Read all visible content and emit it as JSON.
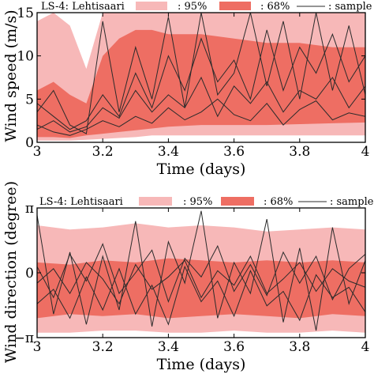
{
  "colors": {
    "band95": "#f7b8b8",
    "band68": "#ee6e63",
    "sample": "#2b2b2b",
    "axis": "#000000"
  },
  "legend": {
    "l95": ": 95%",
    "l68": ": 68%",
    "lsample": ": sample"
  },
  "chart_data": [
    {
      "type": "area",
      "title": "LS-4: Lehtisaari",
      "xlabel": "Time (days)",
      "ylabel": "Wind speed (m/s)",
      "xlim": [
        3,
        4
      ],
      "ylim": [
        0,
        15
      ],
      "xticks": [
        3,
        3.2,
        3.4,
        3.6,
        3.8,
        4
      ],
      "xtick_labels": [
        "3",
        "3.2",
        "3.4",
        "3.6",
        "3.8",
        "4"
      ],
      "yticks": [
        0,
        5,
        10,
        15
      ],
      "ytick_labels": [
        "0",
        "5",
        "10",
        "15"
      ],
      "x": [
        3.0,
        3.05,
        3.1,
        3.15,
        3.2,
        3.25,
        3.3,
        3.35,
        3.4,
        3.5,
        3.6,
        3.7,
        3.8,
        3.9,
        4.0
      ],
      "band95_lower": [
        0.2,
        0.2,
        0.2,
        0.3,
        0.4,
        0.5,
        0.6,
        0.8,
        0.8,
        0.8,
        0.8,
        0.8,
        0.8,
        0.8,
        0.8
      ],
      "band95_upper": [
        14.0,
        15.0,
        13.5,
        8.5,
        15.0,
        15.0,
        15.0,
        15.0,
        15.0,
        15.0,
        15.0,
        15.0,
        15.0,
        15.0,
        15.0
      ],
      "band68_lower": [
        0.6,
        0.6,
        0.5,
        0.8,
        1.0,
        1.2,
        1.4,
        1.6,
        1.8,
        2.0,
        2.0,
        2.0,
        2.1,
        2.2,
        2.3
      ],
      "band68_upper": [
        6.0,
        7.0,
        5.5,
        4.5,
        10.0,
        12.0,
        13.0,
        13.0,
        12.5,
        12.5,
        12.0,
        11.5,
        11.5,
        11.0,
        11.0
      ],
      "samples": [
        {
          "x": [
            3.0,
            3.05,
            3.1,
            3.15,
            3.2,
            3.25,
            3.3,
            3.35,
            3.4,
            3.45,
            3.5,
            3.55,
            3.6,
            3.65,
            3.7,
            3.75,
            3.8,
            3.85,
            3.9,
            3.95,
            4.0
          ],
          "y": [
            2.0,
            1.2,
            0.8,
            1.5,
            2.5,
            1.8,
            3.0,
            2.2,
            4.0,
            2.6,
            3.5,
            5.0,
            3.2,
            2.5,
            4.5,
            2.0,
            3.8,
            4.8,
            2.6,
            3.4,
            3.0
          ]
        },
        {
          "x": [
            3.0,
            3.05,
            3.1,
            3.15,
            3.2,
            3.25,
            3.3,
            3.35,
            3.4,
            3.45,
            3.5,
            3.55,
            3.6,
            3.65,
            3.7,
            3.75,
            3.8,
            3.85,
            3.9,
            3.95,
            4.0
          ],
          "y": [
            4.5,
            3.0,
            1.5,
            2.5,
            5.5,
            3.0,
            8.0,
            4.0,
            10.0,
            6.0,
            12.0,
            7.0,
            9.5,
            5.0,
            13.0,
            6.0,
            11.0,
            8.0,
            12.5,
            7.0,
            10.0
          ]
        },
        {
          "x": [
            3.0,
            3.05,
            3.1,
            3.15,
            3.2,
            3.25,
            3.3,
            3.35,
            3.4,
            3.45,
            3.5,
            3.55,
            3.6,
            3.65,
            3.7,
            3.75,
            3.8,
            3.85,
            3.9,
            3.95,
            4.0
          ],
          "y": [
            3.5,
            6.0,
            2.0,
            1.0,
            14.0,
            3.5,
            11.0,
            5.0,
            14.5,
            4.0,
            15.0,
            5.5,
            8.0,
            15.0,
            6.5,
            14.0,
            5.0,
            15.0,
            6.0,
            13.5,
            5.5
          ]
        },
        {
          "x": [
            3.0,
            3.05,
            3.1,
            3.15,
            3.2,
            3.25,
            3.3,
            3.35,
            3.4,
            3.45,
            3.5,
            3.55,
            3.6,
            3.65,
            3.7,
            3.75,
            3.8,
            3.85,
            3.9,
            3.95,
            4.0
          ],
          "y": [
            1.5,
            2.5,
            1.2,
            1.8,
            4.0,
            2.8,
            6.0,
            3.5,
            5.5,
            4.0,
            7.5,
            3.0,
            6.5,
            4.5,
            7.0,
            3.5,
            6.0,
            5.0,
            7.5,
            4.0,
            6.5
          ]
        }
      ]
    },
    {
      "type": "area",
      "title": "LS-4: Lehtisaari",
      "xlabel": "Time (days)",
      "ylabel": "Wind direction (degree)",
      "xlim": [
        3,
        4
      ],
      "ylim": [
        -3.1416,
        3.1416
      ],
      "xticks": [
        3,
        3.2,
        3.4,
        3.6,
        3.8,
        4
      ],
      "xtick_labels": [
        "3",
        "3.2",
        "3.4",
        "3.6",
        "3.8",
        "4"
      ],
      "yticks": [
        -3.1416,
        0,
        3.1416
      ],
      "ytick_labels": [
        "−π",
        "0",
        "π"
      ],
      "x": [
        3.0,
        3.1,
        3.2,
        3.3,
        3.4,
        3.5,
        3.6,
        3.7,
        3.8,
        3.9,
        4.0
      ],
      "band95_lower": [
        -2.9,
        -2.9,
        -2.8,
        -2.8,
        -2.9,
        -2.9,
        -2.8,
        -2.9,
        -2.9,
        -2.8,
        -2.9
      ],
      "band95_upper": [
        2.3,
        2.1,
        2.2,
        2.4,
        2.2,
        2.3,
        2.2,
        2.0,
        2.1,
        2.2,
        2.1
      ],
      "band68_lower": [
        -2.2,
        -2.0,
        -2.1,
        -2.0,
        -2.2,
        -2.1,
        -2.0,
        -2.1,
        -2.2,
        -2.0,
        -2.1
      ],
      "band68_upper": [
        0.5,
        0.4,
        0.6,
        0.5,
        0.7,
        0.6,
        0.5,
        0.6,
        0.5,
        0.6,
        0.5
      ],
      "samples": [
        {
          "x": [
            3.0,
            3.05,
            3.1,
            3.15,
            3.2,
            3.25,
            3.3,
            3.35,
            3.4,
            3.45,
            3.5,
            3.55,
            3.6,
            3.65,
            3.7,
            3.75,
            3.8,
            3.85,
            3.9,
            3.95,
            4.0
          ],
          "y": [
            -0.5,
            0.2,
            -1.0,
            0.5,
            -0.3,
            -1.5,
            0.4,
            -0.8,
            -0.2,
            0.6,
            -1.2,
            0.1,
            -0.6,
            0.8,
            -1.0,
            -0.3,
            0.5,
            -0.9,
            0.2,
            -0.4,
            -0.7
          ]
        },
        {
          "x": [
            3.0,
            3.05,
            3.1,
            3.15,
            3.2,
            3.25,
            3.3,
            3.35,
            3.4,
            3.45,
            3.5,
            3.55,
            3.6,
            3.65,
            3.7,
            3.75,
            3.8,
            3.85,
            3.9,
            3.95,
            4.0
          ],
          "y": [
            2.8,
            -2.0,
            1.0,
            -2.5,
            0.8,
            -1.8,
            2.5,
            -2.6,
            1.5,
            -0.5,
            3.0,
            -2.2,
            0.5,
            -1.0,
            2.6,
            -2.4,
            1.2,
            -2.8,
            2.2,
            -1.5,
            0.6
          ]
        },
        {
          "x": [
            3.0,
            3.05,
            3.1,
            3.15,
            3.2,
            3.25,
            3.3,
            3.35,
            3.4,
            3.45,
            3.5,
            3.55,
            3.6,
            3.65,
            3.7,
            3.75,
            3.8,
            3.85,
            3.9,
            3.95,
            4.0
          ],
          "y": [
            -1.5,
            -0.8,
            -2.2,
            -0.2,
            -1.8,
            0.2,
            -2.0,
            -0.6,
            -2.5,
            0.3,
            -1.4,
            -0.4,
            -2.1,
            0.1,
            -1.6,
            -0.9,
            -2.3,
            -0.1,
            -1.2,
            -0.7,
            -1.9
          ]
        },
        {
          "x": [
            3.0,
            3.05,
            3.1,
            3.15,
            3.2,
            3.25,
            3.3,
            3.35,
            3.4,
            3.45,
            3.5,
            3.55,
            3.6,
            3.65,
            3.7,
            3.75,
            3.8,
            3.85,
            3.9,
            3.95,
            4.0
          ],
          "y": [
            0.3,
            -1.2,
            0.9,
            -0.4,
            1.4,
            -1.0,
            0.0,
            1.1,
            -1.4,
            0.7,
            -0.2,
            1.3,
            -0.9,
            0.4,
            -1.1,
            1.0,
            -0.5,
            0.8,
            -1.3,
            0.2,
            0.9
          ]
        }
      ]
    }
  ]
}
